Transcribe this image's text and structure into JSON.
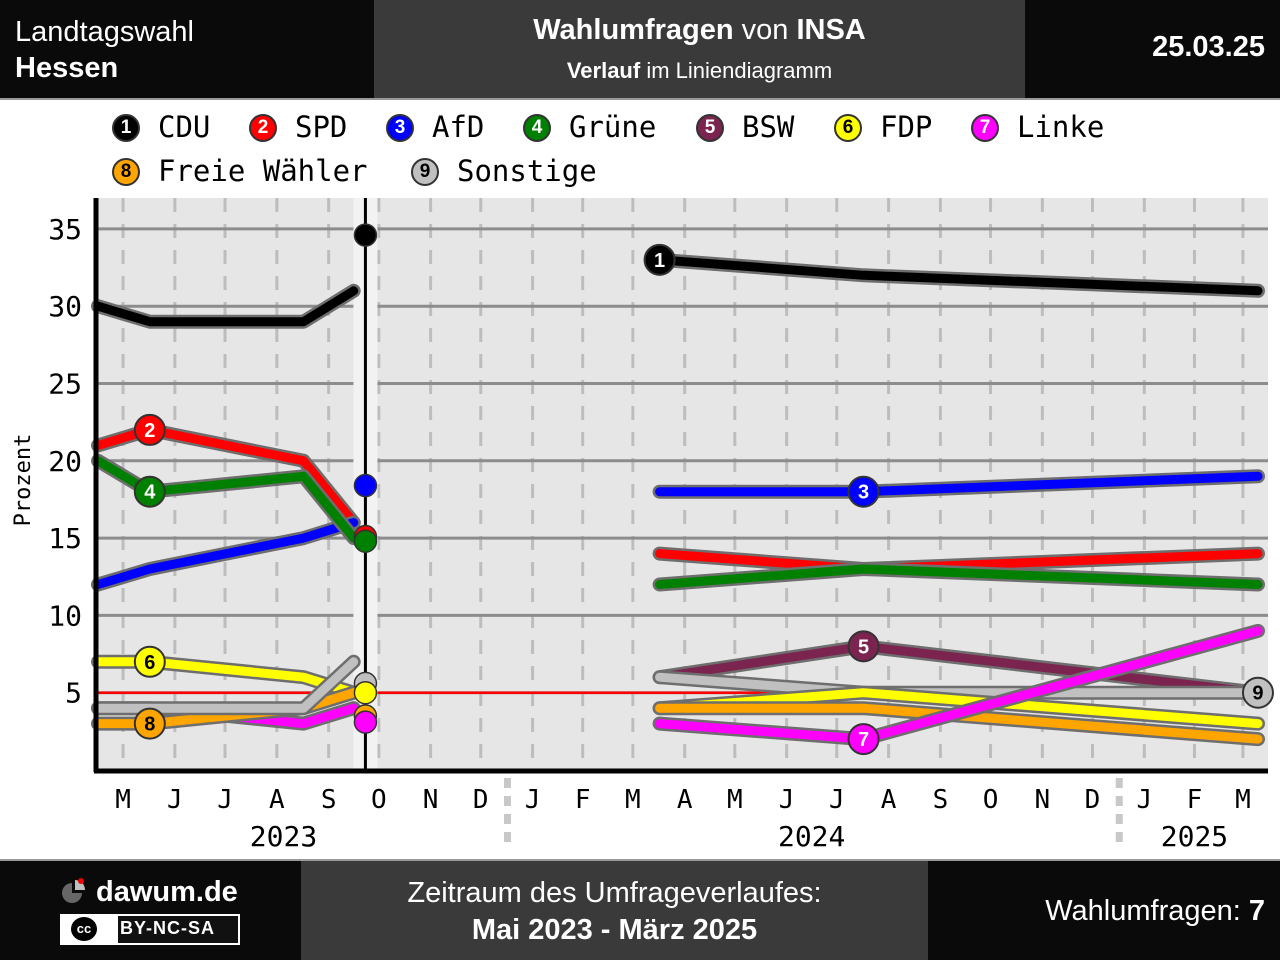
{
  "header": {
    "election_line1": "Landtagswahl",
    "election_line2": "Hessen",
    "title_part1": "Wahlumfragen",
    "title_part2": " von ",
    "title_part3": "INSA",
    "subtitle_part1": "Verlauf",
    "subtitle_part2": " im Liniendiagramm",
    "date": "25.03.25"
  },
  "legend": [
    {
      "num": "1",
      "name": "CDU",
      "color": "#000000",
      "text_color": "#ffffff"
    },
    {
      "num": "2",
      "name": "SPD",
      "color": "#ff0000",
      "text_color": "#ffffff"
    },
    {
      "num": "3",
      "name": "AfD",
      "color": "#0000ff",
      "text_color": "#ffffff"
    },
    {
      "num": "4",
      "name": "Grüne",
      "color": "#008000",
      "text_color": "#ffffff"
    },
    {
      "num": "5",
      "name": "BSW",
      "color": "#7b2450",
      "text_color": "#ffffff"
    },
    {
      "num": "6",
      "name": "FDP",
      "color": "#ffff00",
      "text_color": "#000000"
    },
    {
      "num": "7",
      "name": "Linke",
      "color": "#ff00ff",
      "text_color": "#ffffff"
    },
    {
      "num": "8",
      "name": "Freie Wähler",
      "color": "#ffa500",
      "text_color": "#000000"
    },
    {
      "num": "9",
      "name": "Sonstige",
      "color": "#c0c0c0",
      "text_color": "#000000"
    }
  ],
  "chart_data": {
    "type": "line",
    "ylabel": "Prozent",
    "ylim": [
      0,
      37
    ],
    "yticks": [
      5,
      10,
      15,
      20,
      25,
      30,
      35
    ],
    "threshold": 5,
    "threshold_color": "#ff0000",
    "election_date": "2023-10-08",
    "x_range": [
      "2023-05-01",
      "2025-03-31"
    ],
    "months": [
      {
        "label": "M",
        "date": "2023-05"
      },
      {
        "label": "J",
        "date": "2023-06"
      },
      {
        "label": "J",
        "date": "2023-07"
      },
      {
        "label": "A",
        "date": "2023-08"
      },
      {
        "label": "S",
        "date": "2023-09"
      },
      {
        "label": "O",
        "date": "2023-10"
      },
      {
        "label": "N",
        "date": "2023-11"
      },
      {
        "label": "D",
        "date": "2023-12"
      },
      {
        "label": "J",
        "date": "2024-01"
      },
      {
        "label": "F",
        "date": "2024-02"
      },
      {
        "label": "M",
        "date": "2024-03"
      },
      {
        "label": "A",
        "date": "2024-04"
      },
      {
        "label": "M",
        "date": "2024-05"
      },
      {
        "label": "J",
        "date": "2024-06"
      },
      {
        "label": "J",
        "date": "2024-07"
      },
      {
        "label": "A",
        "date": "2024-08"
      },
      {
        "label": "S",
        "date": "2024-09"
      },
      {
        "label": "O",
        "date": "2024-10"
      },
      {
        "label": "N",
        "date": "2024-11"
      },
      {
        "label": "D",
        "date": "2024-12"
      },
      {
        "label": "J",
        "date": "2025-01"
      },
      {
        "label": "F",
        "date": "2025-02"
      },
      {
        "label": "M",
        "date": "2025-03"
      }
    ],
    "years": [
      {
        "label": "2023",
        "date": "2023-08-20"
      },
      {
        "label": "2024",
        "date": "2024-07-01"
      },
      {
        "label": "2025",
        "date": "2025-02-15"
      }
    ],
    "pre_election_segments": [
      {
        "name": "CDU",
        "x": [
          "2023-05-01",
          "2023-06-01",
          "2023-09-01",
          "2023-10-01"
        ],
        "y": [
          30,
          29,
          29,
          31
        ]
      },
      {
        "name": "SPD",
        "x": [
          "2023-05-01",
          "2023-06-01",
          "2023-09-01",
          "2023-10-01"
        ],
        "y": [
          21,
          22,
          20,
          16
        ]
      },
      {
        "name": "AfD",
        "x": [
          "2023-05-01",
          "2023-06-01",
          "2023-09-01",
          "2023-10-01"
        ],
        "y": [
          12,
          13,
          15,
          16
        ]
      },
      {
        "name": "Grüne",
        "x": [
          "2023-05-01",
          "2023-06-01",
          "2023-09-01",
          "2023-10-01"
        ],
        "y": [
          20,
          18,
          19,
          15
        ]
      },
      {
        "name": "FDP",
        "x": [
          "2023-05-01",
          "2023-06-01",
          "2023-09-01",
          "2023-10-01"
        ],
        "y": [
          7,
          7,
          6,
          5
        ]
      },
      {
        "name": "Linke",
        "x": [
          "2023-05-01",
          "2023-06-01",
          "2023-09-01",
          "2023-10-01"
        ],
        "y": [
          4,
          4,
          3,
          4
        ]
      },
      {
        "name": "Freie Wähler",
        "x": [
          "2023-05-01",
          "2023-06-01",
          "2023-09-01",
          "2023-10-01"
        ],
        "y": [
          3,
          3,
          4,
          5
        ]
      },
      {
        "name": "Sonstige",
        "x": [
          "2023-05-01",
          "2023-06-01",
          "2023-09-01",
          "2023-10-01"
        ],
        "y": [
          4,
          4,
          4,
          7
        ]
      }
    ],
    "election_results": [
      {
        "name": "CDU",
        "value": 34.6
      },
      {
        "name": "AfD",
        "value": 18.4
      },
      {
        "name": "SPD",
        "value": 15.1
      },
      {
        "name": "Grüne",
        "value": 14.8
      },
      {
        "name": "Sonstige",
        "value": 5.6
      },
      {
        "name": "FDP",
        "value": 5.0
      },
      {
        "name": "Freie Wähler",
        "value": 3.5
      },
      {
        "name": "Linke",
        "value": 3.1
      }
    ],
    "series": [
      {
        "name": "CDU",
        "x": [
          "2024-04-01",
          "2024-08-01",
          "2025-03-25"
        ],
        "y": [
          33,
          32,
          31
        ]
      },
      {
        "name": "AfD",
        "x": [
          "2024-04-01",
          "2024-08-01",
          "2025-03-25"
        ],
        "y": [
          18,
          18,
          19
        ]
      },
      {
        "name": "SPD",
        "x": [
          "2024-04-01",
          "2024-08-01",
          "2025-03-25"
        ],
        "y": [
          14,
          13,
          14
        ]
      },
      {
        "name": "Grüne",
        "x": [
          "2024-04-01",
          "2024-08-01",
          "2025-03-25"
        ],
        "y": [
          12,
          13,
          12
        ]
      },
      {
        "name": "BSW",
        "x": [
          "2024-04-01",
          "2024-08-01",
          "2025-03-25"
        ],
        "y": [
          6,
          8,
          5
        ]
      },
      {
        "name": "Sonstige",
        "x": [
          "2024-04-01",
          "2024-08-01",
          "2025-03-25"
        ],
        "y": [
          6,
          5,
          5
        ]
      },
      {
        "name": "FDP",
        "x": [
          "2024-04-01",
          "2024-08-01",
          "2025-03-25"
        ],
        "y": [
          4,
          5,
          3
        ]
      },
      {
        "name": "Freie Wähler",
        "x": [
          "2024-04-01",
          "2024-08-01",
          "2025-03-25"
        ],
        "y": [
          4,
          4,
          2
        ]
      },
      {
        "name": "Linke",
        "x": [
          "2024-04-01",
          "2024-08-01",
          "2025-03-25"
        ],
        "y": [
          3,
          2,
          9
        ]
      }
    ],
    "markers": [
      {
        "name": "CDU",
        "num": "1",
        "date": "2024-04-01",
        "value": 33
      },
      {
        "name": "SPD",
        "num": "2",
        "date": "2023-06-01",
        "value": 22
      },
      {
        "name": "AfD",
        "num": "3",
        "date": "2024-08-01",
        "value": 18
      },
      {
        "name": "Grüne",
        "num": "4",
        "date": "2023-06-01",
        "value": 18
      },
      {
        "name": "BSW",
        "num": "5",
        "date": "2024-08-01",
        "value": 8
      },
      {
        "name": "FDP",
        "num": "6",
        "date": "2023-06-01",
        "value": 7
      },
      {
        "name": "Linke",
        "num": "7",
        "date": "2024-08-01",
        "value": 2
      },
      {
        "name": "Freie Wähler",
        "num": "8",
        "date": "2023-06-01",
        "value": 3
      },
      {
        "name": "Sonstige",
        "num": "9",
        "date": "2025-03-25",
        "value": 5
      }
    ]
  },
  "footer": {
    "brand": "dawum.de",
    "license": "BY-NC-SA",
    "license_icon": "cc",
    "period_label": "Zeitraum des Umfrageverlaufes:",
    "period_value": "Mai 2023 - März 2025",
    "count_label": "Wahlumfragen: ",
    "count_value": "7"
  }
}
